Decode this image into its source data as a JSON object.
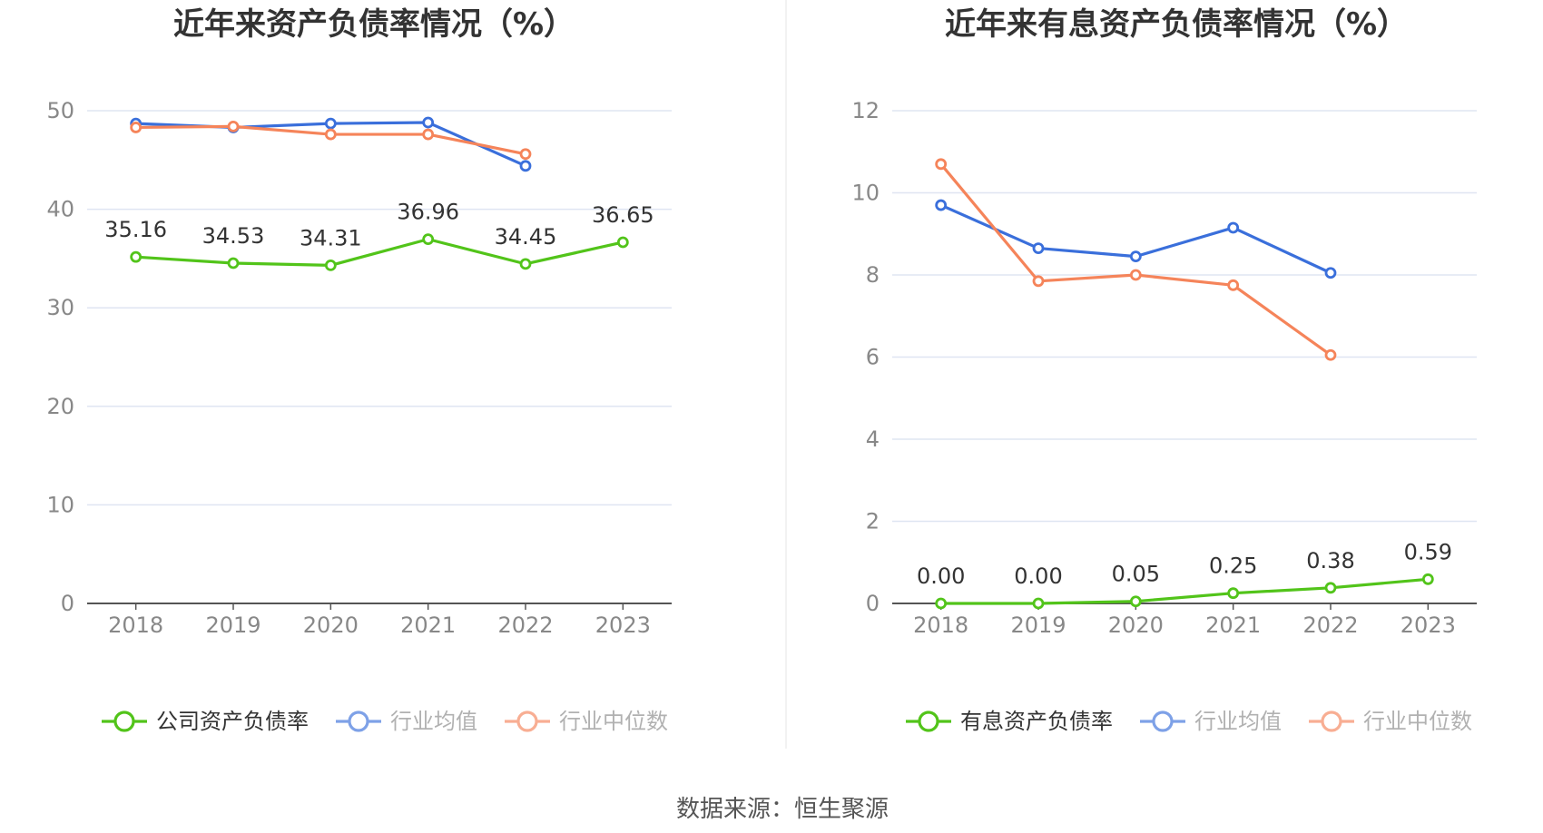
{
  "source": "数据来源：恒生聚源",
  "chart_data": [
    {
      "type": "line",
      "title": "近年来资产负债率情况（%）",
      "categories": [
        "2018",
        "2019",
        "2020",
        "2021",
        "2022",
        "2023"
      ],
      "ylim": [
        0,
        50
      ],
      "yticks": [
        "0",
        "10",
        "20",
        "30",
        "40",
        "50"
      ],
      "grid": true,
      "legend_position": "bottom",
      "series": [
        {
          "name": "公司资产负债率",
          "color": "#52c41a",
          "values": [
            35.16,
            34.53,
            34.31,
            36.96,
            34.45,
            36.65
          ],
          "labels": [
            "35.16",
            "34.53",
            "34.31",
            "36.96",
            "34.45",
            "36.65"
          ]
        },
        {
          "name": "行业均值",
          "color": "#3a6fdb",
          "values": [
            48.7,
            48.3,
            48.7,
            48.8,
            44.4,
            null
          ]
        },
        {
          "name": "行业中位数",
          "color": "#f5845a",
          "values": [
            48.3,
            48.4,
            47.6,
            47.6,
            45.6,
            null
          ]
        }
      ]
    },
    {
      "type": "line",
      "title": "近年来有息资产负债率情况（%）",
      "categories": [
        "2018",
        "2019",
        "2020",
        "2021",
        "2022",
        "2023"
      ],
      "ylim": [
        0,
        12
      ],
      "yticks": [
        "0",
        "2",
        "4",
        "6",
        "8",
        "10",
        "12"
      ],
      "grid": true,
      "legend_position": "bottom",
      "series": [
        {
          "name": "有息资产负债率",
          "color": "#52c41a",
          "values": [
            0.0,
            0.0,
            0.05,
            0.25,
            0.38,
            0.59
          ],
          "labels": [
            "0.00",
            "0.00",
            "0.05",
            "0.25",
            "0.38",
            "0.59"
          ]
        },
        {
          "name": "行业均值",
          "color": "#3a6fdb",
          "values": [
            9.7,
            8.65,
            8.45,
            9.15,
            8.05,
            null
          ]
        },
        {
          "name": "行业中位数",
          "color": "#f5845a",
          "values": [
            10.7,
            7.85,
            8.0,
            7.75,
            6.05,
            null
          ]
        }
      ]
    }
  ]
}
